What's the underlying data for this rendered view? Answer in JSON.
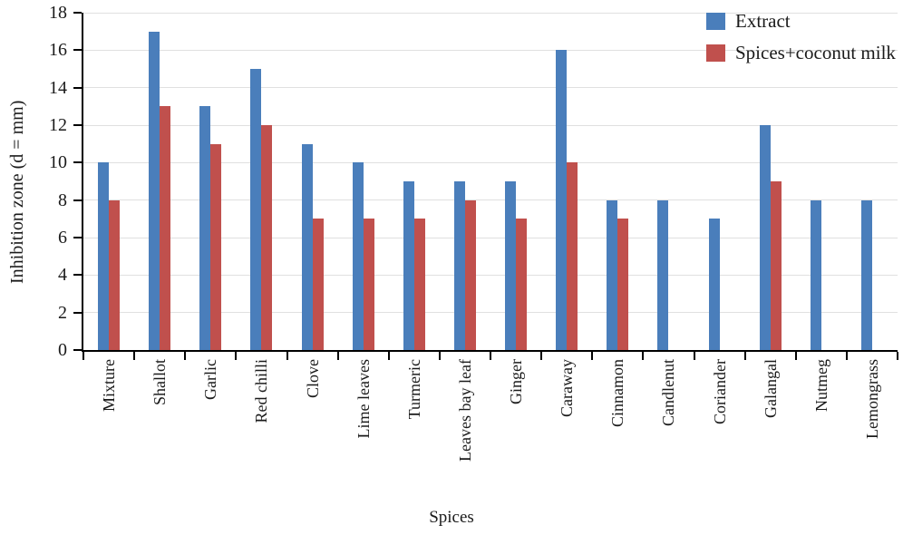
{
  "figure": {
    "background": "#ffffff",
    "axis_color": "#000000",
    "grid_color": "#e0e0e0",
    "text_color": "#1a1a1a"
  },
  "chart_data": {
    "type": "bar",
    "title": "",
    "xlabel": "Spices",
    "ylabel": "Inhibition zone (d = mm)",
    "ylim": [
      0,
      18
    ],
    "ytick_step": 2,
    "yticks": [
      0,
      2,
      4,
      6,
      8,
      10,
      12,
      14,
      16,
      18
    ],
    "grid": true,
    "legend_position": "top-right",
    "categories": [
      "Mixture",
      "Shallot",
      "Garlic",
      "Red chilli",
      "Clove",
      "Lime leaves",
      "Turmeric",
      "Leaves bay leaf",
      "Ginger",
      "Caraway",
      "Cinnamon",
      "Candlenut",
      "Coriander",
      "Galangal",
      "Nutmeg",
      "Lemongrass"
    ],
    "series": [
      {
        "name": "Extract",
        "color": "#4a7ebb",
        "values": [
          10,
          17,
          13,
          15,
          11,
          10,
          9,
          9,
          9,
          16,
          8,
          8,
          7,
          12,
          8,
          8
        ]
      },
      {
        "name": "Spices+coconut milk",
        "color": "#c0504d",
        "values": [
          8,
          13,
          11,
          12,
          7,
          7,
          7,
          8,
          7,
          10,
          7,
          0,
          0,
          9,
          0,
          0
        ]
      }
    ]
  }
}
